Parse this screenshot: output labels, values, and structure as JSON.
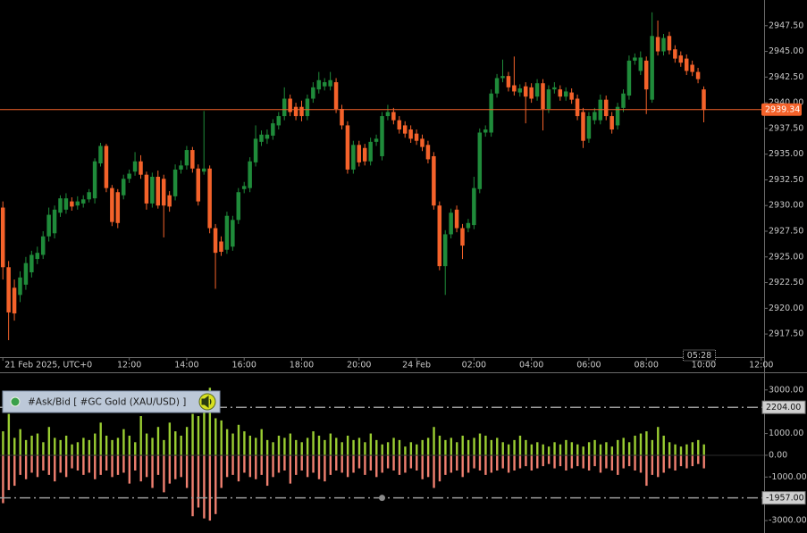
{
  "chart_data": [
    {
      "type": "candlestick",
      "up_color": "#1f8b3a",
      "down_color": "#f4622a",
      "xlim": [
        -0.5,
        132.5
      ],
      "xticks": [
        {
          "value": 0,
          "label": "21 Feb 2025, UTC+0"
        },
        {
          "value": 22,
          "label": "12:00"
        },
        {
          "value": 32,
          "label": "14:00"
        },
        {
          "value": 42,
          "label": "16:00"
        },
        {
          "value": 52,
          "label": "18:00"
        },
        {
          "value": 62,
          "label": "20:00"
        },
        {
          "value": 72,
          "label": "24 Feb"
        },
        {
          "value": 82,
          "label": "02:00"
        },
        {
          "value": 92,
          "label": "04:00"
        },
        {
          "value": 102,
          "label": "06:00"
        },
        {
          "value": 112,
          "label": "08:00"
        },
        {
          "value": 122,
          "label": "10:00"
        },
        {
          "value": 132,
          "label": "12:00"
        }
      ],
      "ylim": [
        2915.25,
        2950
      ],
      "yticks": [
        {
          "value": 2917.5,
          "label": "2917.50"
        },
        {
          "value": 2920,
          "label": "2920.00"
        },
        {
          "value": 2922.5,
          "label": "2922.50"
        },
        {
          "value": 2925,
          "label": "2925.00"
        },
        {
          "value": 2927.5,
          "label": "2927.50"
        },
        {
          "value": 2930,
          "label": "2930.00"
        },
        {
          "value": 2932.5,
          "label": "2932.50"
        },
        {
          "value": 2935,
          "label": "2935.00"
        },
        {
          "value": 2937.5,
          "label": "2937.50"
        },
        {
          "value": 2940,
          "label": "2940.00"
        },
        {
          "value": 2942.5,
          "label": "2942.50"
        },
        {
          "value": 2945,
          "label": "2945.00"
        },
        {
          "value": 2947.5,
          "label": "2947.50"
        }
      ],
      "last_price": 2939.34,
      "countdown": "05:28",
      "open": [
        2929.8,
        2924.0,
        2922.0,
        2921.3,
        2922.3,
        2923.5,
        2924.8,
        2925.2,
        2927.0,
        2927.3,
        2929.3,
        2929.6,
        2930.4,
        2930.0,
        2930.2,
        2930.6,
        2930.7,
        2934.1,
        2935.8,
        2931.7,
        2931.3,
        2931.0,
        2932.6,
        2933.3,
        2934.3,
        2933.0,
        2930.2,
        2932.8,
        2932.6,
        2931.0,
        2930.9,
        2933.5,
        2933.9,
        2935.4,
        2933.6,
        2933.3,
        2933.6,
        2927.8,
        2926.5,
        2925.7,
        2926.0,
        2928.6,
        2931.6,
        2931.7,
        2934.2,
        2936.2,
        2936.5,
        2936.8,
        2937.8,
        2938.7,
        2940.4,
        2939.6,
        2939.6,
        2938.7,
        2940.4,
        2941.3,
        2941.6,
        2941.6,
        2942.0,
        2939.4,
        2937.8,
        2933.5,
        2935.9,
        2935.6,
        2934.3,
        2936.2,
        2934.8,
        2938.7,
        2939.1,
        2938.3,
        2937.8,
        2937.4,
        2937.0,
        2936.5,
        2935.9,
        2934.8,
        2930.0,
        2924.1,
        2927.2,
        2929.6,
        2927.8,
        2927.8,
        2928.1,
        2931.6,
        2937.1,
        2937.1,
        2940.9,
        2942.4,
        2942.6,
        2941.7,
        2941.0,
        2941.6,
        2941.5,
        2940.6,
        2941.9,
        2939.4,
        2941.3,
        2941.3,
        2940.6,
        2941.0,
        2940.4,
        2939.1,
        2936.5,
        2938.3,
        2938.3,
        2940.3,
        2938.7,
        2937.8,
        2939.5,
        2940.7,
        2944.1,
        2943.1,
        2944.1,
        2940.3,
        2946.4,
        2945.0,
        2946.5,
        2945.2,
        2944.6,
        2944.3,
        2943.7,
        2943.0,
        2941.3
      ],
      "high": [
        2930.4,
        2924.6,
        2922.8,
        2923.6,
        2925.0,
        2925.6,
        2926.0,
        2927.5,
        2929.8,
        2930.0,
        2931.0,
        2931.2,
        2930.8,
        2930.9,
        2931.0,
        2931.6,
        2934.6,
        2936.1,
        2936.0,
        2932.0,
        2931.6,
        2933.0,
        2933.5,
        2935.2,
        2934.9,
        2933.3,
        2933.2,
        2933.4,
        2933.0,
        2931.4,
        2934.0,
        2934.4,
        2935.8,
        2935.7,
        2934.0,
        2939.2,
        2933.9,
        2928.2,
        2927.0,
        2929.4,
        2929.0,
        2931.7,
        2932.3,
        2934.7,
        2937.8,
        2937.3,
        2937.4,
        2938.4,
        2939.1,
        2941.5,
        2940.8,
        2940.0,
        2940.2,
        2940.8,
        2942.0,
        2943.0,
        2942.4,
        2943.0,
        2942.4,
        2939.8,
        2938.2,
        2936.3,
        2936.3,
        2936.0,
        2936.6,
        2936.9,
        2939.1,
        2939.8,
        2939.5,
        2938.7,
        2938.2,
        2937.8,
        2937.4,
        2936.9,
        2936.3,
        2935.2,
        2930.4,
        2927.6,
        2929.7,
        2930.0,
        2928.2,
        2928.7,
        2932.8,
        2937.5,
        2937.8,
        2941.3,
        2942.8,
        2944.2,
        2943.0,
        2944.5,
        2941.8,
        2942.0,
        2941.9,
        2942.3,
        2942.3,
        2941.7,
        2942.0,
        2941.7,
        2941.5,
        2941.4,
        2940.8,
        2939.5,
        2939.1,
        2939.5,
        2940.8,
        2940.7,
        2939.1,
        2940.0,
        2941.3,
        2944.6,
        2944.8,
        2945.0,
        2944.5,
        2948.8,
        2948.0,
        2946.7,
        2946.9,
        2945.6,
        2945.0,
        2944.7,
        2944.1,
        2943.4,
        2941.6
      ],
      "low": [
        2922.8,
        2916.9,
        2918.8,
        2920.6,
        2921.8,
        2923.0,
        2924.3,
        2924.8,
        2926.5,
        2926.8,
        2928.9,
        2929.2,
        2929.5,
        2929.6,
        2929.8,
        2930.3,
        2930.2,
        2933.8,
        2931.3,
        2928.0,
        2927.8,
        2930.6,
        2932.2,
        2932.9,
        2932.6,
        2929.6,
        2929.8,
        2929.7,
        2926.9,
        2929.4,
        2930.5,
        2933.1,
        2933.5,
        2933.2,
        2930.0,
        2933.0,
        2927.3,
        2921.9,
        2925.1,
        2925.3,
        2925.6,
        2928.2,
        2931.2,
        2931.3,
        2933.8,
        2935.8,
        2936.0,
        2936.4,
        2937.4,
        2938.3,
        2938.7,
        2938.3,
        2938.2,
        2938.3,
        2940.0,
        2940.9,
        2941.2,
        2941.2,
        2939.0,
        2937.4,
        2933.1,
        2933.1,
        2933.8,
        2933.9,
        2933.9,
        2935.8,
        2934.4,
        2938.3,
        2937.9,
        2937.0,
        2936.6,
        2936.1,
        2935.9,
        2935.3,
        2934.1,
        2929.6,
        2923.7,
        2921.3,
        2926.8,
        2927.4,
        2924.8,
        2927.4,
        2927.7,
        2931.2,
        2936.7,
        2936.7,
        2940.5,
        2942.0,
        2941.1,
        2940.7,
        2940.6,
        2938.0,
        2940.0,
        2940.2,
        2937.3,
        2939.0,
        2940.9,
        2940.2,
        2940.2,
        2939.9,
        2938.3,
        2935.6,
        2936.1,
        2937.9,
        2937.9,
        2938.3,
        2937.0,
        2937.4,
        2939.1,
        2940.3,
        2943.7,
        2942.7,
        2938.9,
        2940.0,
        2944.6,
        2944.6,
        2944.7,
        2943.9,
        2943.5,
        2942.7,
        2942.6,
        2941.9,
        2938.1
      ],
      "close": [
        2924.0,
        2919.6,
        2919.5,
        2923.0,
        2924.4,
        2925.2,
        2925.4,
        2927.0,
        2929.1,
        2929.6,
        2930.7,
        2930.7,
        2929.9,
        2930.4,
        2930.6,
        2931.3,
        2934.3,
        2935.8,
        2931.7,
        2928.4,
        2928.3,
        2932.6,
        2933.1,
        2934.3,
        2933.0,
        2930.2,
        2932.8,
        2930.0,
        2930.0,
        2929.9,
        2933.5,
        2933.9,
        2935.4,
        2933.6,
        2930.4,
        2933.6,
        2927.8,
        2925.4,
        2925.5,
        2929.0,
        2928.6,
        2931.3,
        2931.9,
        2934.3,
        2936.5,
        2936.9,
        2936.9,
        2938.0,
        2938.7,
        2940.4,
        2939.1,
        2938.7,
        2938.7,
        2940.4,
        2941.5,
        2942.2,
        2942.0,
        2942.2,
        2939.4,
        2937.8,
        2933.5,
        2935.9,
        2934.2,
        2934.3,
        2936.2,
        2936.5,
        2938.7,
        2939.1,
        2938.3,
        2937.4,
        2937.0,
        2936.5,
        2936.3,
        2935.7,
        2934.5,
        2930.0,
        2924.1,
        2927.2,
        2929.3,
        2927.8,
        2926.1,
        2928.3,
        2931.7,
        2937.1,
        2937.4,
        2940.9,
        2942.4,
        2942.6,
        2941.5,
        2941.1,
        2941.4,
        2940.6,
        2940.4,
        2941.9,
        2939.4,
        2941.3,
        2941.5,
        2940.6,
        2941.1,
        2940.3,
        2938.7,
        2936.3,
        2938.7,
        2939.1,
        2940.3,
        2938.7,
        2937.4,
        2939.6,
        2940.9,
        2944.1,
        2944.4,
        2944.4,
        2941.3,
        2946.5,
        2945.0,
        2946.3,
        2945.1,
        2944.3,
        2943.9,
        2943.1,
        2943.0,
        2942.3,
        2939.3
      ]
    },
    {
      "type": "bar",
      "title": "#Ask/Bid [ #GC Gold (XAU/USD) ]",
      "xlim": [
        -0.5,
        132.5
      ],
      "ylim": [
        -3570,
        3770
      ],
      "yticks": [
        {
          "value": 3000,
          "label": "3000.00"
        },
        {
          "value": 1000,
          "label": "1000.00"
        },
        {
          "value": 0,
          "label": "0.00"
        },
        {
          "value": -1000,
          "label": "-1000.00"
        },
        {
          "value": -3000,
          "label": "-3000.00"
        }
      ],
      "levels": [
        {
          "value": 2204,
          "label": "2204.00"
        },
        {
          "value": -1957,
          "label": "-1957.00"
        }
      ],
      "series": [
        {
          "color": "#9acd32",
          "values": [
            1100,
            1900,
            800,
            1200,
            700,
            900,
            1000,
            600,
            1300,
            800,
            700,
            900,
            500,
            600,
            800,
            700,
            1000,
            1500,
            900,
            700,
            800,
            1200,
            900,
            600,
            1800,
            1000,
            800,
            1300,
            700,
            1500,
            1100,
            900,
            1300,
            1900,
            1800,
            2000,
            3100,
            1700,
            1600,
            1200,
            1000,
            1400,
            1100,
            900,
            800,
            1200,
            700,
            600,
            900,
            800,
            1000,
            700,
            600,
            800,
            1100,
            900,
            700,
            1000,
            800,
            600,
            900,
            700,
            800,
            600,
            1000,
            700,
            500,
            600,
            800,
            700,
            400,
            600,
            500,
            700,
            800,
            1300,
            900,
            700,
            800,
            600,
            900,
            700,
            800,
            1000,
            900,
            700,
            800,
            600,
            500,
            700,
            900,
            700,
            500,
            600,
            500,
            400,
            600,
            500,
            700,
            600,
            500,
            400,
            600,
            700,
            500,
            600,
            400,
            700,
            800,
            600,
            900,
            1000,
            1100,
            700,
            1300,
            900,
            600,
            500,
            400,
            500,
            600,
            700,
            500
          ]
        },
        {
          "color": "#f08070",
          "values": [
            -2200,
            -1600,
            -1400,
            -900,
            -1100,
            -800,
            -1000,
            -700,
            -900,
            -1200,
            -800,
            -1000,
            -600,
            -700,
            -900,
            -800,
            -1100,
            -900,
            -700,
            -1000,
            -900,
            -800,
            -1300,
            -700,
            -1200,
            -1000,
            -1500,
            -900,
            -1700,
            -1300,
            -1100,
            -1000,
            -1500,
            -2800,
            -2400,
            -2900,
            -3000,
            -2700,
            -1500,
            -1000,
            -900,
            -1200,
            -800,
            -1000,
            -1100,
            -900,
            -1400,
            -1000,
            -800,
            -700,
            -1300,
            -900,
            -700,
            -1000,
            -800,
            -1100,
            -1200,
            -900,
            -700,
            -800,
            -1000,
            -800,
            -600,
            -900,
            -700,
            -1000,
            -800,
            -600,
            -700,
            -900,
            -800,
            -600,
            -700,
            -1100,
            -1000,
            -1500,
            -1200,
            -900,
            -800,
            -700,
            -1000,
            -800,
            -600,
            -700,
            -900,
            -800,
            -700,
            -600,
            -800,
            -700,
            -600,
            -500,
            -700,
            -600,
            -500,
            -400,
            -600,
            -500,
            -700,
            -600,
            -500,
            -600,
            -700,
            -500,
            -800,
            -600,
            -700,
            -900,
            -600,
            -500,
            -700,
            -800,
            -1400,
            -900,
            -1000,
            -800,
            -600,
            -700,
            -500,
            -600,
            -500,
            -400,
            -600
          ]
        }
      ]
    }
  ]
}
